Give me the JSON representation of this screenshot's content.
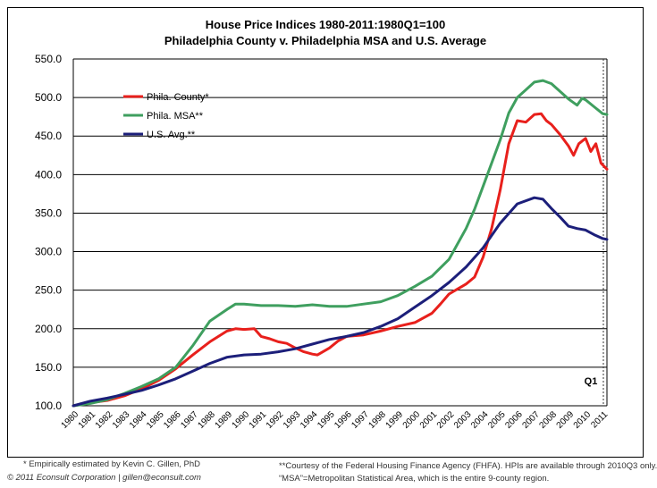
{
  "chart_data": {
    "type": "line",
    "title": "House Price Indices 1980-2011:1980Q1=100",
    "subtitle": "Philadelphia County v. Philadelphia MSA and U.S. Average",
    "xlabel": "",
    "ylabel": "",
    "ylim": [
      100,
      550
    ],
    "xlim": [
      1980,
      2011.25
    ],
    "y_ticks": [
      "100.0",
      "150.0",
      "200.0",
      "250.0",
      "300.0",
      "350.0",
      "400.0",
      "450.0",
      "500.0",
      "550.0"
    ],
    "x_ticks": [
      "1980",
      "1981",
      "1982",
      "1983",
      "1984",
      "1985",
      "1986",
      "1987",
      "1988",
      "1989",
      "1990",
      "1991",
      "1992",
      "1993",
      "1994",
      "1995",
      "1996",
      "1997",
      "1998",
      "1999",
      "2000",
      "2001",
      "2002",
      "2003",
      "2004",
      "2005",
      "2006",
      "2007",
      "2008",
      "2009",
      "2010",
      "2011"
    ],
    "grid": "horizontal",
    "legend_position": "top-left",
    "annotation": "Q1",
    "series": [
      {
        "name": "Phila. County*",
        "color": "#e8201c",
        "points": [
          [
            1980,
            100
          ],
          [
            1981,
            104
          ],
          [
            1982,
            107
          ],
          [
            1983,
            113
          ],
          [
            1984,
            122
          ],
          [
            1985,
            133
          ],
          [
            1986,
            148
          ],
          [
            1987,
            166
          ],
          [
            1988,
            183
          ],
          [
            1989,
            197
          ],
          [
            1989.5,
            200
          ],
          [
            1990,
            199
          ],
          [
            1990.6,
            200
          ],
          [
            1991,
            190
          ],
          [
            1991.5,
            187
          ],
          [
            1992,
            183
          ],
          [
            1992.5,
            181
          ],
          [
            1993,
            175
          ],
          [
            1993.5,
            170
          ],
          [
            1994,
            167
          ],
          [
            1994.3,
            166
          ],
          [
            1995,
            175
          ],
          [
            1995.5,
            184
          ],
          [
            1996,
            190
          ],
          [
            1997,
            192
          ],
          [
            1998,
            197
          ],
          [
            1999,
            203
          ],
          [
            2000,
            208
          ],
          [
            2001,
            220
          ],
          [
            2001.5,
            232
          ],
          [
            2002,
            245
          ],
          [
            2003,
            258
          ],
          [
            2003.5,
            267
          ],
          [
            2004,
            293
          ],
          [
            2004.5,
            330
          ],
          [
            2005,
            380
          ],
          [
            2005.5,
            440
          ],
          [
            2006,
            470
          ],
          [
            2006.5,
            468
          ],
          [
            2007,
            478
          ],
          [
            2007.4,
            479
          ],
          [
            2007.7,
            470
          ],
          [
            2008,
            465
          ],
          [
            2008.5,
            452
          ],
          [
            2009,
            437
          ],
          [
            2009.3,
            425
          ],
          [
            2009.6,
            440
          ],
          [
            2010,
            447
          ],
          [
            2010.3,
            430
          ],
          [
            2010.6,
            440
          ],
          [
            2010.9,
            415
          ],
          [
            2011.25,
            407
          ]
        ]
      },
      {
        "name": "Phila. MSA**",
        "color": "#3f9f5f",
        "points": [
          [
            1980,
            100
          ],
          [
            1981,
            103
          ],
          [
            1982,
            108
          ],
          [
            1983,
            116
          ],
          [
            1984,
            125
          ],
          [
            1985,
            135
          ],
          [
            1986,
            150
          ],
          [
            1987,
            178
          ],
          [
            1988,
            210
          ],
          [
            1989,
            225
          ],
          [
            1989.5,
            232
          ],
          [
            1990,
            232
          ],
          [
            1991,
            230
          ],
          [
            1992,
            230
          ],
          [
            1993,
            229
          ],
          [
            1994,
            231
          ],
          [
            1995,
            229
          ],
          [
            1996,
            229
          ],
          [
            1997,
            232
          ],
          [
            1998,
            235
          ],
          [
            1999,
            243
          ],
          [
            2000,
            255
          ],
          [
            2001,
            268
          ],
          [
            2002,
            290
          ],
          [
            2003,
            330
          ],
          [
            2003.5,
            355
          ],
          [
            2004,
            385
          ],
          [
            2005,
            445
          ],
          [
            2005.5,
            480
          ],
          [
            2006,
            500
          ],
          [
            2006.5,
            510
          ],
          [
            2007,
            520
          ],
          [
            2007.5,
            522
          ],
          [
            2008,
            518
          ],
          [
            2008.5,
            508
          ],
          [
            2009,
            498
          ],
          [
            2009.5,
            490
          ],
          [
            2009.8,
            499
          ],
          [
            2010,
            497
          ],
          [
            2010.5,
            488
          ],
          [
            2011,
            479
          ],
          [
            2011.25,
            478
          ]
        ]
      },
      {
        "name": "U.S. Avg.**",
        "color": "#1c1f7a",
        "points": [
          [
            1980,
            100
          ],
          [
            1981,
            106
          ],
          [
            1982,
            110
          ],
          [
            1983,
            115
          ],
          [
            1984,
            120
          ],
          [
            1985,
            127
          ],
          [
            1986,
            135
          ],
          [
            1987,
            145
          ],
          [
            1988,
            155
          ],
          [
            1989,
            163
          ],
          [
            1990,
            166
          ],
          [
            1991,
            167
          ],
          [
            1992,
            170
          ],
          [
            1993,
            174
          ],
          [
            1994,
            180
          ],
          [
            1995,
            186
          ],
          [
            1996,
            190
          ],
          [
            1997,
            195
          ],
          [
            1998,
            203
          ],
          [
            1999,
            213
          ],
          [
            2000,
            228
          ],
          [
            2001,
            243
          ],
          [
            2002,
            260
          ],
          [
            2003,
            280
          ],
          [
            2004,
            305
          ],
          [
            2005,
            337
          ],
          [
            2006,
            362
          ],
          [
            2007,
            370
          ],
          [
            2007.5,
            368
          ],
          [
            2008,
            356
          ],
          [
            2008.5,
            345
          ],
          [
            2009,
            333
          ],
          [
            2009.5,
            330
          ],
          [
            2010,
            328
          ],
          [
            2010.5,
            322
          ],
          [
            2011,
            317
          ],
          [
            2011.25,
            316
          ]
        ]
      }
    ]
  },
  "footnotes": {
    "left_1": "* Empirically estimated by Kevin C. Gillen, PhD",
    "left_2": "© 2011 Econsult Corporation  |  gillen@econsult.com",
    "right_1": "**Courtesy of the Federal Housing Finance Agency (FHFA).  HPIs are available through 2010Q3 only.",
    "right_2": "“MSA”=Metropolitan Statistical Area, which is the entire 9-county region."
  },
  "colors": {
    "frame": "#000000",
    "gridline": "#000000",
    "background": "#ffffff"
  }
}
